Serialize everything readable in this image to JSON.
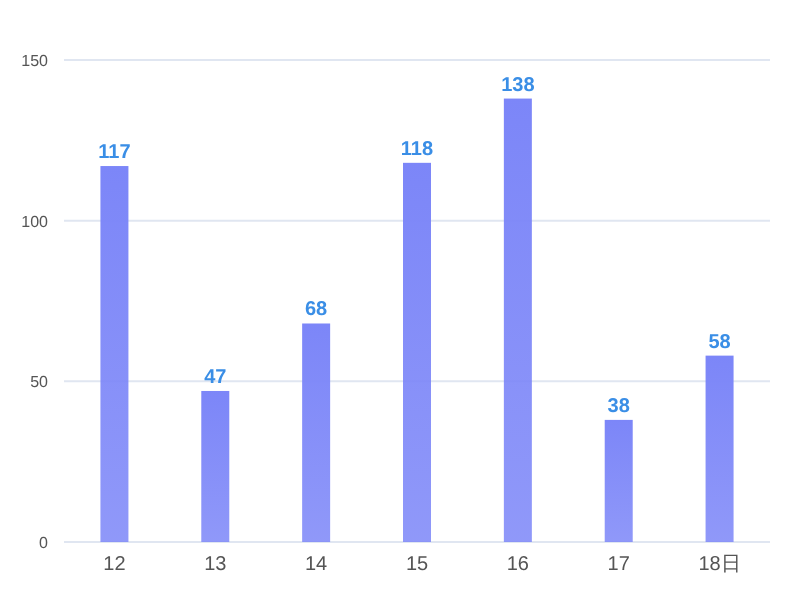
{
  "chart_data": {
    "type": "bar",
    "categories": [
      "12",
      "13",
      "14",
      "15",
      "16",
      "17",
      "18日"
    ],
    "values": [
      117,
      47,
      68,
      118,
      138,
      38,
      58
    ],
    "color": "#7c86f8",
    "ylim": [
      0,
      150
    ],
    "yticks": [
      0,
      50,
      100,
      150
    ],
    "grid": "y",
    "data_labels": true
  }
}
